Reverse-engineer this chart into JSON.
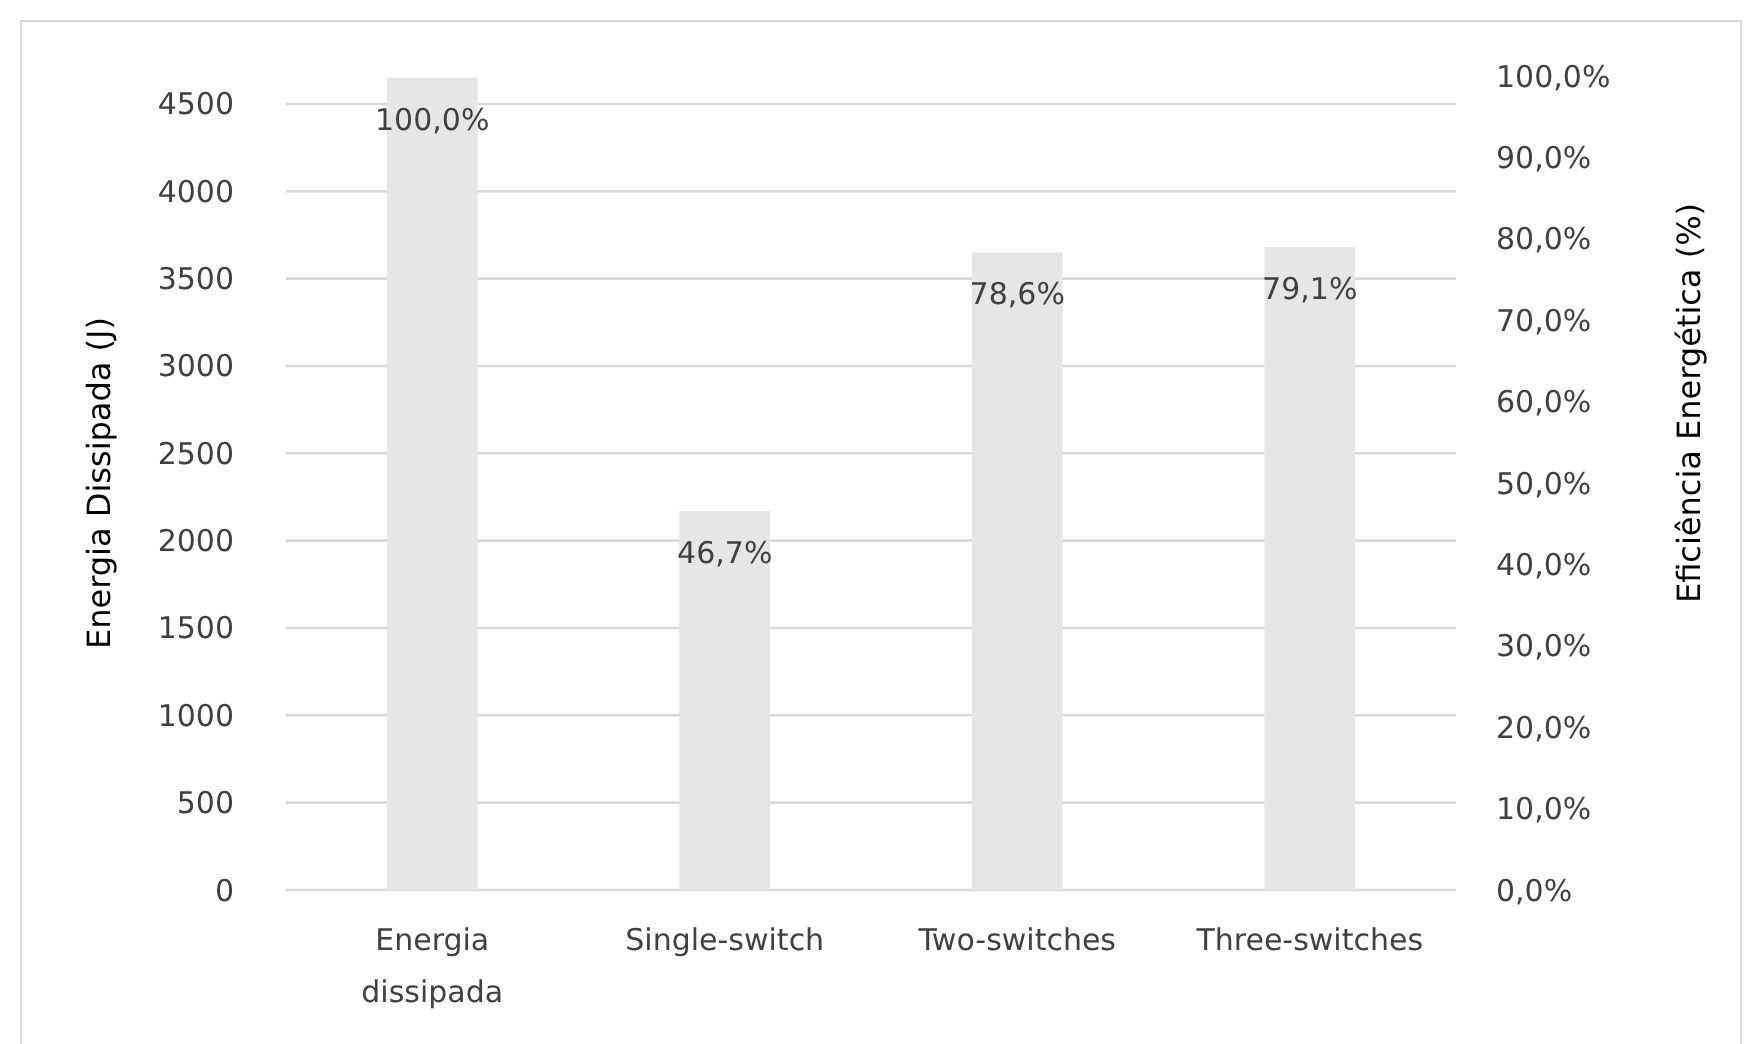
{
  "chart_data": {
    "type": "bar",
    "ylabel": "Energia Dissipada (J)",
    "y2label": "Eficiência Energética (%)",
    "categories": [
      "Energia dissipada",
      "Single-switch",
      "Two-switches",
      "Three-switches"
    ],
    "values": [
      4650,
      2170,
      3650,
      3680
    ],
    "color": "#e7e6e6",
    "annotations": [
      {
        "text": "100,0%",
        "x": "Energia dissipada",
        "y": 4650
      },
      {
        "text": "46,7%",
        "x": "Single-switch",
        "y": 2170
      },
      {
        "text": "78,6%",
        "x": "Two-switches",
        "y": 3650
      },
      {
        "text": "79,1%",
        "x": "Three-switches",
        "y": 3680
      }
    ],
    "ylim": [
      0,
      4660
    ],
    "yticks": [
      0,
      500,
      1000,
      1500,
      2000,
      2500,
      3000,
      3500,
      4000,
      4500
    ],
    "y2lim": [
      0,
      100
    ],
    "y2ticks": [
      {
        "value": 0,
        "label": "0,0%"
      },
      {
        "value": 10,
        "label": "10,0%"
      },
      {
        "value": 20,
        "label": "20,0%"
      },
      {
        "value": 30,
        "label": "30,0%"
      },
      {
        "value": 40,
        "label": "40,0%"
      },
      {
        "value": 50,
        "label": "50,0%"
      },
      {
        "value": 60,
        "label": "60,0%"
      },
      {
        "value": 70,
        "label": "70,0%"
      },
      {
        "value": 80,
        "label": "80,0%"
      },
      {
        "value": 90,
        "label": "90,0%"
      },
      {
        "value": 100,
        "label": "100,0%"
      }
    ],
    "grid": "y"
  }
}
